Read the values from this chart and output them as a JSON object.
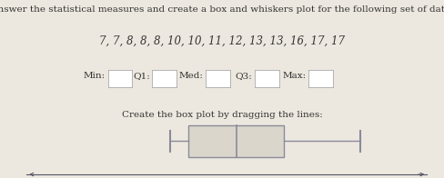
{
  "title": "Answer the statistical measures and create a box and whiskers plot for the following set of data.",
  "data_label": "7, 7, 8, 8, 8, 10, 10, 11, 12, 13, 13, 16, 17, 17",
  "instruction": "Create the box plot by dragging the lines:",
  "fields": [
    "Min:",
    "Q1:",
    "Med:",
    "Q3:",
    "Max:"
  ],
  "min": 7,
  "q1": 8,
  "median": 10.5,
  "q3": 13,
  "max": 17,
  "axis_min": 0,
  "axis_max": 20,
  "bg_color": "#ede8df",
  "box_facecolor": "#dbd6cc",
  "box_edgecolor": "#8a8a9a",
  "line_color": "#8a8a9a",
  "axis_line_color": "#555566",
  "text_color": "#333333",
  "title_fontsize": 7.5,
  "data_fontsize": 8.5,
  "label_fontsize": 7.5,
  "tick_fontsize": 6.5
}
